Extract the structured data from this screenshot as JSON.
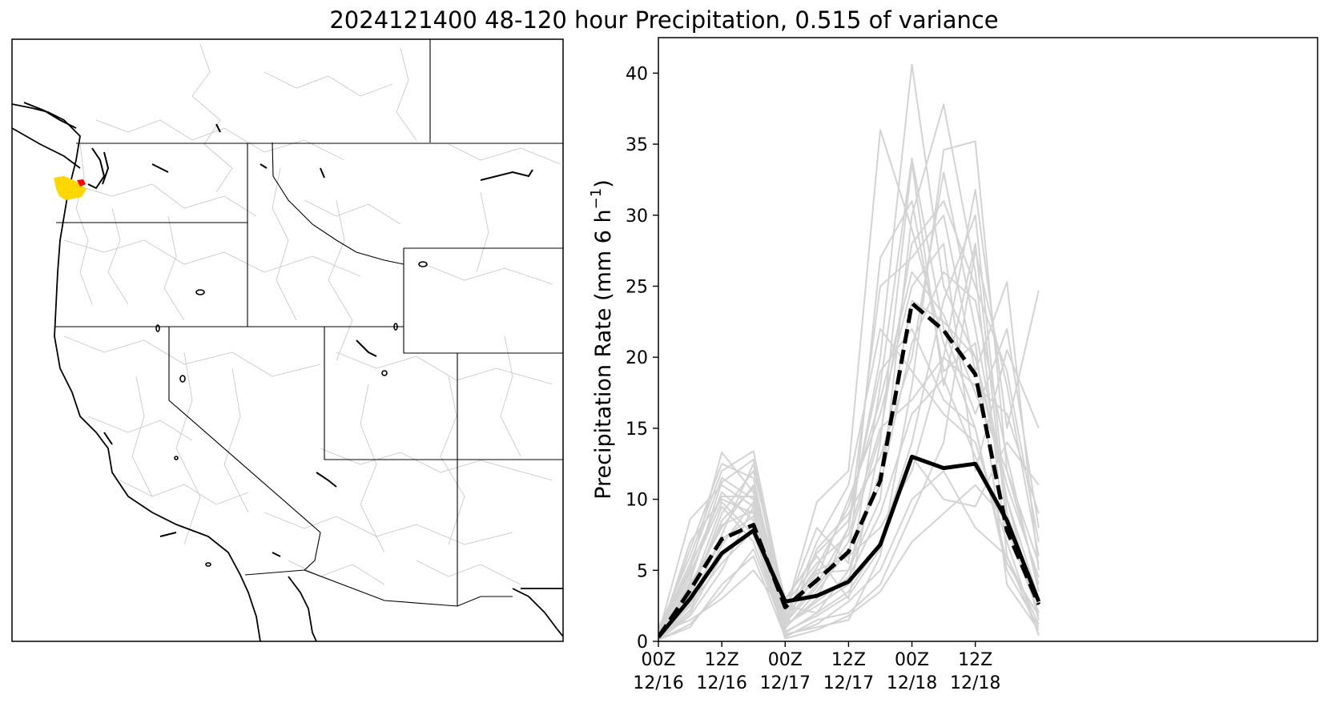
{
  "title": "2024121400 48-120 hour Precipitation, 0.515 of variance",
  "map": {
    "highlight_colors": {
      "primary": "#ffd700",
      "secondary": "#ff0000"
    },
    "coast_color": "#000000",
    "basin_color": "#c8c8c8"
  },
  "chart_data": {
    "type": "line",
    "title": "2024121400 48-120 hour Precipitation, 0.515 of variance",
    "xlabel": "",
    "ylabel": "Precipitation Rate (mm 6 h",
    "ylabel_sup": "−1",
    "ylabel_close": ")",
    "xlim": [
      0,
      20.8
    ],
    "ylim": [
      0,
      42.5
    ],
    "yticks": [
      0,
      5,
      10,
      15,
      20,
      25,
      30,
      35,
      40
    ],
    "xticks": [
      {
        "pos": 0,
        "line1": "00Z",
        "line2": "12/16"
      },
      {
        "pos": 2,
        "line1": "12Z",
        "line2": "12/16"
      },
      {
        "pos": 4,
        "line1": "00Z",
        "line2": "12/17"
      },
      {
        "pos": 6,
        "line1": "12Z",
        "line2": "12/17"
      },
      {
        "pos": 8,
        "line1": "00Z",
        "line2": "12/18"
      },
      {
        "pos": 10,
        "line1": "12Z",
        "line2": "12/18"
      }
    ],
    "x": [
      0,
      1,
      2,
      3,
      4,
      5,
      6,
      7,
      8,
      9,
      10,
      11,
      12
    ],
    "series": [
      {
        "style": "solid-black",
        "values": [
          0.3,
          3.0,
          6.2,
          7.8,
          2.8,
          3.2,
          4.2,
          6.8,
          13.0,
          12.2,
          12.5,
          8.5,
          2.8
        ]
      },
      {
        "style": "dashed-black",
        "values": [
          0.3,
          3.6,
          7.2,
          8.2,
          2.4,
          4.3,
          6.3,
          11.3,
          23.8,
          21.9,
          18.8,
          7.8,
          2.6
        ]
      }
    ],
    "ensemble_color": "#d3d3d3",
    "ensemble": [
      [
        0.5,
        8.6,
        11.0,
        9.5,
        2.0,
        9.8,
        12.0,
        36.0,
        29.0,
        21.0,
        15.0,
        5.0,
        1.0
      ],
      [
        1.0,
        5.0,
        13.3,
        10.5,
        1.5,
        4.0,
        8.0,
        20.0,
        40.6,
        25.0,
        20.0,
        10.0,
        3.0
      ],
      [
        0.2,
        3.0,
        9.0,
        12.0,
        3.0,
        6.0,
        3.0,
        14.0,
        33.7,
        18.0,
        28.0,
        8.0,
        2.0
      ],
      [
        0.8,
        6.0,
        12.0,
        13.4,
        2.5,
        2.0,
        5.0,
        10.0,
        30.0,
        37.8,
        26.0,
        6.0,
        0.5
      ],
      [
        0.1,
        2.0,
        6.0,
        8.0,
        0.5,
        1.0,
        1.5,
        6.0,
        18.0,
        34.6,
        35.2,
        12.0,
        4.0
      ],
      [
        0.3,
        4.0,
        8.0,
        11.0,
        1.0,
        3.0,
        8.0,
        25.0,
        27.0,
        30.0,
        19.0,
        25.3,
        5.0
      ],
      [
        0.6,
        1.5,
        3.0,
        5.0,
        2.0,
        5.0,
        6.0,
        8.0,
        12.0,
        20.0,
        31.8,
        15.0,
        24.7
      ],
      [
        0.2,
        7.0,
        10.0,
        9.0,
        1.2,
        2.5,
        4.0,
        18.0,
        34.0,
        22.0,
        16.0,
        22.0,
        8.0
      ],
      [
        0.4,
        3.5,
        9.5,
        7.0,
        0.8,
        6.5,
        9.0,
        13.0,
        20.0,
        33.0,
        22.0,
        10.0,
        1.5
      ],
      [
        0.1,
        1.0,
        4.0,
        6.0,
        0.3,
        1.5,
        2.0,
        4.0,
        9.0,
        14.0,
        27.5,
        18.0,
        6.0
      ],
      [
        0.7,
        5.5,
        11.5,
        10.0,
        2.2,
        8.0,
        5.5,
        27.0,
        31.0,
        19.0,
        21.0,
        4.0,
        0.8
      ],
      [
        0.2,
        2.5,
        7.5,
        12.5,
        1.8,
        4.5,
        10.0,
        16.0,
        25.0,
        28.0,
        12.0,
        20.5,
        15.0
      ],
      [
        0.5,
        4.5,
        10.5,
        8.5,
        0.6,
        2.0,
        3.5,
        7.0,
        14.0,
        24.0,
        30.0,
        9.0,
        2.5
      ],
      [
        0.3,
        6.5,
        12.5,
        11.5,
        1.4,
        7.0,
        11.0,
        22.0,
        19.0,
        16.0,
        14.0,
        7.0,
        0.4
      ],
      [
        0.1,
        1.8,
        5.0,
        9.5,
        0.9,
        3.5,
        6.5,
        11.0,
        21.0,
        26.0,
        24.0,
        13.0,
        3.5
      ],
      [
        0.4,
        3.2,
        8.5,
        10.8,
        2.6,
        5.5,
        7.5,
        15.0,
        17.0,
        20.0,
        18.0,
        16.0,
        9.0
      ],
      [
        0.2,
        2.2,
        6.8,
        9.8,
        0.4,
        1.2,
        2.8,
        5.0,
        10.0,
        12.0,
        8.0,
        6.0,
        1.2
      ],
      [
        0.6,
        4.8,
        9.8,
        7.5,
        1.6,
        4.8,
        5.0,
        12.0,
        24.0,
        22.5,
        20.0,
        11.0,
        4.5
      ],
      [
        0.3,
        2.8,
        7.2,
        8.8,
        1.1,
        2.8,
        4.5,
        9.0,
        16.0,
        18.5,
        13.0,
        8.0,
        2.0
      ],
      [
        0.1,
        1.2,
        3.5,
        6.5,
        0.7,
        1.8,
        3.2,
        6.5,
        13.0,
        10.0,
        9.5,
        14.0,
        11.0
      ],
      [
        0.5,
        5.2,
        10.2,
        10.2,
        2.9,
        6.2,
        8.5,
        19.0,
        22.0,
        17.0,
        15.0,
        5.5,
        1.8
      ],
      [
        0.2,
        3.8,
        8.2,
        9.2,
        1.3,
        3.8,
        7.0,
        14.5,
        28.0,
        31.0,
        25.0,
        19.0,
        7.0
      ],
      [
        0.4,
        2.6,
        5.5,
        7.8,
        0.2,
        0.8,
        1.8,
        3.5,
        7.0,
        9.0,
        11.0,
        8.5,
        3.0
      ],
      [
        0.3,
        4.2,
        11.2,
        12.8,
        2.1,
        5.2,
        9.5,
        17.0,
        26.0,
        23.0,
        17.5,
        12.0,
        5.5
      ]
    ]
  }
}
